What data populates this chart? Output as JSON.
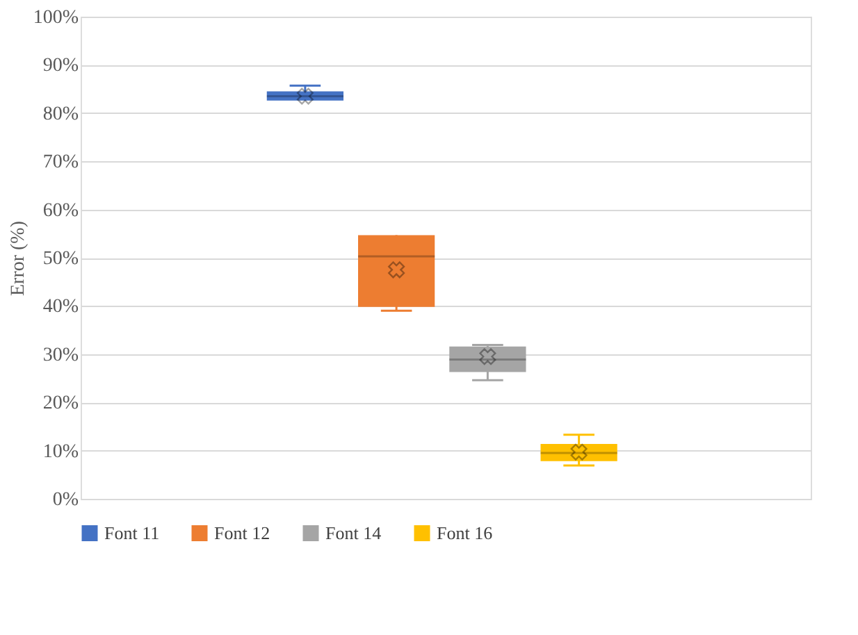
{
  "chart_data": {
    "type": "box",
    "ylabel": "Error (%)",
    "categories": [
      null
    ],
    "series": [
      {
        "name": "Font 11",
        "color": "#4472c4",
        "boxes": [
          {
            "low": 82.6,
            "q1": 82.6,
            "median": 83.5,
            "q3": 84.5,
            "high": 85.7,
            "mean": 83.5
          }
        ]
      },
      {
        "name": "Font 12",
        "color": "#ed7d31",
        "boxes": [
          {
            "low": 39.0,
            "q1": 39.8,
            "median": 50.3,
            "q3": 54.7,
            "high": 54.7,
            "mean": 47.5
          }
        ]
      },
      {
        "name": "Font 14",
        "color": "#a5a5a5",
        "boxes": [
          {
            "low": 24.6,
            "q1": 26.3,
            "median": 28.9,
            "q3": 31.6,
            "high": 31.9,
            "mean": 29.5
          }
        ]
      },
      {
        "name": "Font 16",
        "color": "#ffc000",
        "boxes": [
          {
            "low": 6.9,
            "q1": 7.8,
            "median": 9.5,
            "q3": 11.4,
            "high": 13.3,
            "mean": 9.7
          }
        ]
      }
    ],
    "ylim": [
      0,
      100
    ],
    "yticks": [
      {
        "value": 0,
        "label": "0%"
      },
      {
        "value": 10,
        "label": "10%"
      },
      {
        "value": 20,
        "label": "20%"
      },
      {
        "value": 30,
        "label": "30%"
      },
      {
        "value": 40,
        "label": "40%"
      },
      {
        "value": 50,
        "label": "50%"
      },
      {
        "value": 60,
        "label": "60%"
      },
      {
        "value": 70,
        "label": "70%"
      },
      {
        "value": 80,
        "label": "80%"
      },
      {
        "value": 90,
        "label": "90%"
      },
      {
        "value": 100,
        "label": "100%"
      }
    ],
    "grid": "y",
    "legend": "bottom",
    "tick_labels": "y"
  }
}
